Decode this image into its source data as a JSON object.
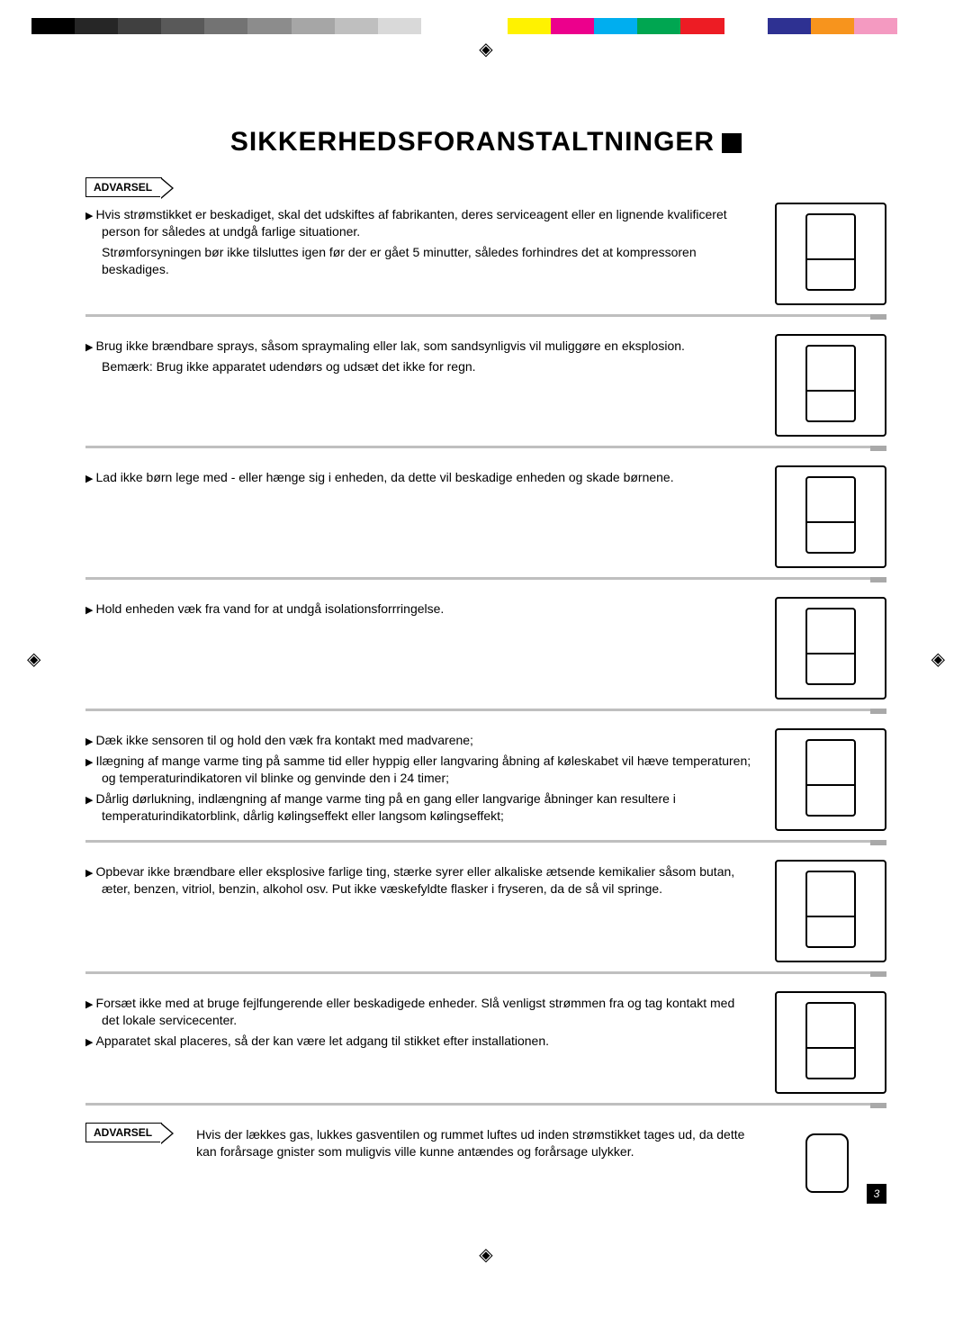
{
  "colorbar": [
    "#000000",
    "#262626",
    "#404040",
    "#595959",
    "#737373",
    "#8c8c8c",
    "#a6a6a6",
    "#bfbfbf",
    "#d9d9d9",
    "#ffffff",
    "#ffffff",
    "#fff200",
    "#ec008c",
    "#00aeef",
    "#00a651",
    "#ed1c24",
    "#ffffff",
    "#2e3192",
    "#f7941d",
    "#f49ac1",
    "#ffffff"
  ],
  "registration_mark": "◈",
  "title": "SIKKERHEDSFORANSTALTNINGER",
  "tag_warn": "ADVARSEL",
  "sections": [
    {
      "items": [
        "Hvis strømstikket er beskadiget, skal det udskiftes af fabrikanten, deres serviceagent eller en lignende kvalificeret person for således at undgå farlige situationer."
      ],
      "notes": [
        "Strømforsyningen bør ikke tilsluttes igen før der er gået 5 minutter, således forhindres det at kompressoren beskadiges."
      ]
    },
    {
      "items": [
        "Brug ikke brændbare sprays, såsom spraymaling eller lak, som sandsynligvis vil muliggøre en eksplosion."
      ],
      "notes": [
        "Bemærk: Brug ikke apparatet udendørs og udsæt det ikke for regn."
      ]
    },
    {
      "items": [
        "Lad ikke børn lege med - eller hænge sig i enheden, da dette vil beskadige enheden og skade børnene."
      ]
    },
    {
      "items": [
        "Hold enheden væk fra vand for at undgå isolationsforrringelse."
      ]
    },
    {
      "items": [
        "Dæk ikke sensoren til og hold den væk fra kontakt med madvarene;",
        "Ilægning af mange varme ting på samme tid eller hyppig eller langvaring åbning af køleskabet vil hæve temperaturen; og temperaturindikatoren vil blinke og genvinde den i 24 timer;",
        "Dårlig dørlukning, indlængning af mange varme ting på en gang eller langvarige åbninger kan resultere i temperaturindikatorblink, dårlig kølingseffekt eller langsom kølingseffekt;"
      ]
    },
    {
      "items": [
        "Opbevar ikke brændbare eller eksplosive farlige ting, stærke syrer eller alkaliske ætsende kemikalier såsom butan, æter, benzen, vitriol, benzin, alkohol osv. Put ikke væskefyldte flasker i fryseren, da de så vil springe."
      ]
    },
    {
      "items": [
        "Forsæt ikke med at bruge fejlfungerende eller beskadigede enheder. Slå venligst strømmen fra og tag kontakt med det lokale servicecenter.",
        "Apparatet skal placeres, så der kan være let adgang til stikket efter installationen."
      ]
    }
  ],
  "final_warn": "Hvis der lækkes gas, lukkes gasventilen og rummet luftes ud inden strømstikket tages ud, da dette kan forårsage gnister som muligvis ville kunne antændes og forårsage ulykker.",
  "page_number": "3"
}
